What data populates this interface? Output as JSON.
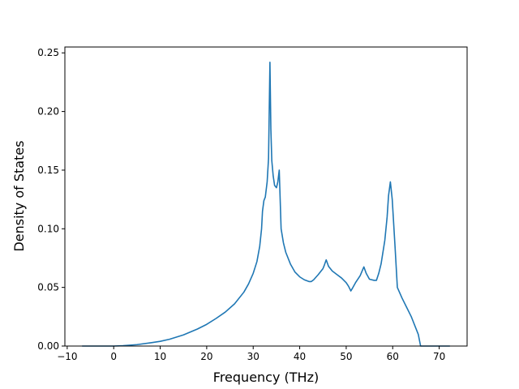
{
  "chart_data": {
    "type": "line",
    "title": "",
    "xlabel": "Frequency (THz)",
    "ylabel": "Density of States",
    "xlim": [
      -10.5,
      76
    ],
    "ylim": [
      0,
      0.255
    ],
    "x_ticks": [
      -10,
      0,
      10,
      20,
      30,
      40,
      50,
      60,
      70
    ],
    "x_tick_labels": [
      "−10",
      "0",
      "10",
      "20",
      "30",
      "40",
      "50",
      "60",
      "70"
    ],
    "y_ticks": [
      0,
      0.05,
      0.1,
      0.15,
      0.2,
      0.25
    ],
    "y_tick_labels": [
      "0.00",
      "0.05",
      "0.10",
      "0.15",
      "0.20",
      "0.25"
    ],
    "grid": false,
    "legend": "none",
    "line_color": "#1f77b4",
    "series": [
      {
        "x": [
          -6.8,
          0,
          2,
          5,
          8,
          10,
          12,
          15,
          18,
          20,
          22,
          24,
          26,
          28,
          29,
          30,
          30.8,
          31.4,
          31.8,
          32.0,
          32.3,
          32.6,
          33.0,
          33.3,
          33.6,
          33.8,
          34.0,
          34.3,
          34.6,
          35.0,
          35.3,
          35.6,
          35.8,
          36.0,
          36.5,
          37,
          38,
          39,
          40,
          41,
          42,
          42.5,
          43,
          44,
          45,
          45.3,
          45.7,
          46.2,
          47,
          48,
          49,
          50,
          50.5,
          51,
          51.3,
          52,
          53,
          53.8,
          54.3,
          55,
          56,
          56.5,
          57,
          57.5,
          58.3,
          58.8,
          59.1,
          59.5,
          59.9,
          60.5,
          61,
          62,
          63,
          64,
          64.8,
          65.5,
          66,
          70,
          72.3
        ],
        "y": [
          0,
          0,
          0.0003,
          0.0012,
          0.0028,
          0.004,
          0.0058,
          0.0095,
          0.0145,
          0.0185,
          0.0235,
          0.029,
          0.036,
          0.046,
          0.053,
          0.062,
          0.072,
          0.085,
          0.1,
          0.115,
          0.124,
          0.127,
          0.14,
          0.16,
          0.242,
          0.185,
          0.158,
          0.145,
          0.137,
          0.135,
          0.14,
          0.15,
          0.125,
          0.1,
          0.088,
          0.08,
          0.07,
          0.063,
          0.059,
          0.0565,
          0.055,
          0.055,
          0.0565,
          0.061,
          0.066,
          0.069,
          0.0735,
          0.068,
          0.064,
          0.061,
          0.058,
          0.054,
          0.051,
          0.047,
          0.049,
          0.054,
          0.06,
          0.0675,
          0.062,
          0.057,
          0.056,
          0.056,
          0.062,
          0.07,
          0.09,
          0.11,
          0.128,
          0.14,
          0.125,
          0.085,
          0.05,
          0.041,
          0.033,
          0.025,
          0.017,
          0.01,
          0,
          0,
          0
        ]
      }
    ]
  }
}
